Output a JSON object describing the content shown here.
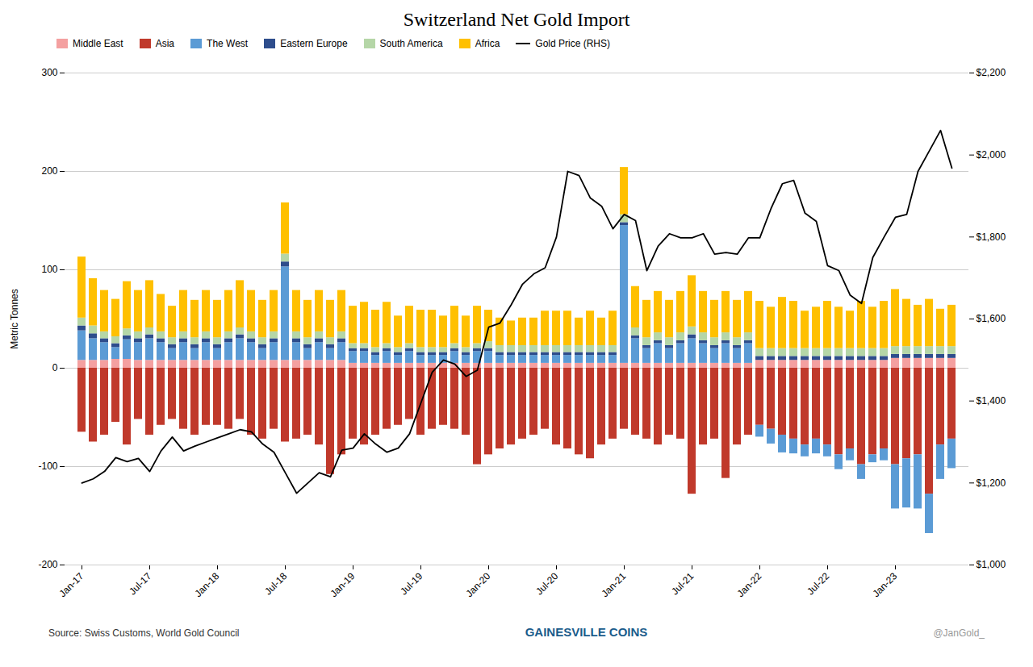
{
  "chart_data": {
    "type": "bar",
    "title": "Switzerland Net Gold Import",
    "ylabel": "Metric Tonnes",
    "categories": [
      "Jan-17",
      null,
      null,
      null,
      null,
      null,
      "Jul-17",
      null,
      null,
      null,
      null,
      null,
      "Jan-18",
      null,
      null,
      null,
      null,
      null,
      "Jul-18",
      null,
      null,
      null,
      null,
      null,
      "Jan-19",
      null,
      null,
      null,
      null,
      null,
      "Jul-19",
      null,
      null,
      null,
      null,
      null,
      "Jan-20",
      null,
      null,
      null,
      null,
      null,
      "Jul-20",
      null,
      null,
      null,
      null,
      null,
      "Jan-21",
      null,
      null,
      null,
      null,
      null,
      "Jul-21",
      null,
      null,
      null,
      null,
      null,
      "Jan-22",
      null,
      null,
      null,
      null,
      null,
      "Jul-22",
      null,
      null,
      null,
      null,
      null,
      "Jan-23",
      null,
      null,
      null,
      null,
      null
    ],
    "stacked": true,
    "grid": true,
    "legend": "upper left",
    "ylim": [
      -200,
      300
    ],
    "yticks": [
      -200,
      -100,
      0,
      100,
      200,
      300
    ],
    "y2lim": [
      1000,
      2200
    ],
    "y2ticks": [
      {
        "value": 1000,
        "label": "$1,000"
      },
      {
        "value": 1200,
        "label": "$1,200"
      },
      {
        "value": 1400,
        "label": "$1,400"
      },
      {
        "value": 1600,
        "label": "$1,600"
      },
      {
        "value": 1800,
        "label": "$1,800"
      },
      {
        "value": 2000,
        "label": "$2,000"
      },
      {
        "value": 2200,
        "label": "$2,200"
      }
    ],
    "series": [
      {
        "name": "Middle East",
        "color": "#F4A0A0",
        "values": [
          8,
          8,
          8,
          9,
          9,
          8,
          8,
          8,
          8,
          8,
          8,
          8,
          8,
          8,
          8,
          8,
          8,
          8,
          8,
          8,
          8,
          8,
          8,
          8,
          5,
          5,
          5,
          5,
          5,
          5,
          5,
          5,
          5,
          5,
          5,
          5,
          5,
          5,
          5,
          5,
          5,
          5,
          5,
          5,
          5,
          5,
          5,
          5,
          5,
          5,
          5,
          5,
          5,
          5,
          5,
          5,
          5,
          5,
          5,
          5,
          8,
          8,
          8,
          8,
          8,
          8,
          8,
          8,
          8,
          8,
          8,
          8,
          10,
          10,
          10,
          10,
          10,
          10
        ]
      },
      {
        "name": "Asia",
        "color": "#C0392B",
        "values": [
          -65,
          -75,
          -68,
          -55,
          -78,
          -52,
          -68,
          -58,
          -52,
          -62,
          -68,
          -58,
          -58,
          -62,
          -52,
          -68,
          -72,
          -62,
          -75,
          -72,
          -68,
          -78,
          -108,
          -88,
          -72,
          -78,
          -68,
          -62,
          -58,
          -52,
          -68,
          -62,
          -58,
          -62,
          -68,
          -98,
          -88,
          -82,
          -78,
          -72,
          -68,
          -62,
          -78,
          -82,
          -88,
          -92,
          -78,
          -72,
          -62,
          -68,
          -72,
          -78,
          -68,
          -72,
          -128,
          -78,
          -72,
          -112,
          -78,
          -68,
          -58,
          -62,
          -68,
          -72,
          -78,
          -72,
          -78,
          -88,
          -82,
          -98,
          -88,
          -82,
          -98,
          -92,
          -88,
          -128,
          -78,
          -72
        ]
      },
      {
        "name": "The West",
        "color": "#5B9BD5",
        "values": [
          30,
          22,
          18,
          12,
          20,
          18,
          22,
          18,
          12,
          18,
          12,
          18,
          12,
          18,
          22,
          18,
          12,
          18,
          95,
          18,
          12,
          18,
          12,
          18,
          12,
          12,
          8,
          12,
          8,
          12,
          8,
          8,
          8,
          12,
          8,
          12,
          12,
          8,
          8,
          8,
          8,
          8,
          8,
          8,
          8,
          8,
          8,
          8,
          140,
          25,
          15,
          20,
          15,
          20,
          25,
          20,
          15,
          20,
          15,
          20,
          -12,
          -15,
          -18,
          -15,
          -12,
          -15,
          -12,
          -15,
          -12,
          -15,
          -8,
          -12,
          -45,
          -50,
          -55,
          -40,
          -35,
          -30
        ]
      },
      {
        "name": "Eastern Europe",
        "color": "#2E4D8C",
        "values": [
          5,
          5,
          4,
          4,
          4,
          4,
          4,
          4,
          4,
          4,
          4,
          4,
          4,
          4,
          4,
          4,
          4,
          4,
          5,
          4,
          4,
          4,
          4,
          4,
          3,
          3,
          3,
          3,
          3,
          3,
          3,
          3,
          3,
          3,
          3,
          3,
          3,
          3,
          3,
          3,
          3,
          3,
          3,
          3,
          3,
          3,
          3,
          3,
          3,
          3,
          3,
          3,
          3,
          3,
          4,
          3,
          3,
          3,
          3,
          3,
          4,
          4,
          4,
          4,
          4,
          4,
          4,
          4,
          4,
          4,
          4,
          4,
          4,
          4,
          4,
          4,
          4,
          4
        ]
      },
      {
        "name": "South America",
        "color": "#B5D6A7",
        "values": [
          8,
          8,
          7,
          7,
          7,
          7,
          7,
          7,
          7,
          7,
          7,
          7,
          7,
          7,
          7,
          7,
          7,
          7,
          8,
          7,
          7,
          7,
          7,
          7,
          5,
          5,
          5,
          5,
          5,
          5,
          5,
          5,
          5,
          5,
          5,
          5,
          7,
          7,
          7,
          7,
          7,
          7,
          7,
          7,
          7,
          7,
          7,
          7,
          8,
          8,
          8,
          8,
          8,
          8,
          8,
          8,
          8,
          8,
          8,
          8,
          8,
          8,
          8,
          8,
          8,
          8,
          8,
          8,
          8,
          8,
          8,
          8,
          8,
          8,
          8,
          8,
          8,
          8
        ]
      },
      {
        "name": "Africa",
        "color": "#FFC000",
        "values": [
          62,
          48,
          42,
          38,
          48,
          42,
          48,
          38,
          32,
          42,
          38,
          42,
          38,
          42,
          48,
          42,
          38,
          42,
          52,
          42,
          38,
          42,
          38,
          42,
          38,
          42,
          38,
          42,
          32,
          38,
          38,
          38,
          32,
          38,
          32,
          38,
          32,
          28,
          25,
          28,
          28,
          35,
          35,
          35,
          28,
          35,
          28,
          35,
          48,
          42,
          38,
          42,
          38,
          42,
          52,
          42,
          38,
          42,
          38,
          42,
          48,
          42,
          52,
          48,
          38,
          42,
          48,
          42,
          38,
          48,
          42,
          48,
          58,
          48,
          42,
          48,
          38,
          42
        ]
      },
      {
        "name": "Gold Price (RHS)",
        "type": "line",
        "axis": "y2",
        "color": "#000000",
        "values": [
          1200,
          1210,
          1228,
          1262,
          1252,
          1260,
          1228,
          1278,
          1312,
          1278,
          1290,
          1300,
          1310,
          1320,
          1330,
          1325,
          1295,
          1275,
          1225,
          1175,
          1200,
          1225,
          1215,
          1280,
          1285,
          1320,
          1295,
          1275,
          1285,
          1320,
          1395,
          1470,
          1500,
          1490,
          1460,
          1475,
          1580,
          1590,
          1635,
          1685,
          1710,
          1725,
          1800,
          1960,
          1950,
          1895,
          1875,
          1820,
          1855,
          1840,
          1718,
          1778,
          1808,
          1798,
          1798,
          1808,
          1758,
          1762,
          1758,
          1798,
          1798,
          1870,
          1930,
          1938,
          1858,
          1838,
          1730,
          1718,
          1658,
          1638,
          1750,
          1800,
          1848,
          1855,
          1960,
          2010,
          2060,
          1968
        ]
      }
    ],
    "annotations": [
      "Source: Swiss Customs, World Gold Council",
      "GAINESVILLE COINS",
      "@JanGold_"
    ]
  }
}
